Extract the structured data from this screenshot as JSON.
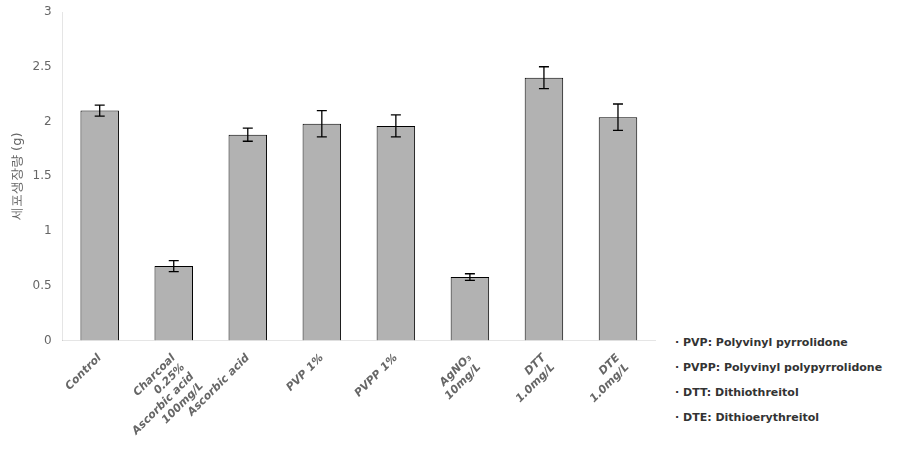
{
  "chart_data": {
    "type": "bar",
    "categories": [
      "Control",
      "Charcoal\n0.25%\nAscorbic acid\n100mg/L",
      "Ascorbic acid",
      "PVP 1%",
      "PVPP 1%",
      "AgNO₃\n10mg/L",
      "DTT\n1.0mg/L",
      "DTE\n1.0mg/L"
    ],
    "values": [
      2.1,
      0.68,
      1.88,
      1.98,
      1.96,
      0.58,
      2.4,
      2.04
    ],
    "errors": [
      0.05,
      0.05,
      0.06,
      0.12,
      0.1,
      0.03,
      0.1,
      0.12
    ],
    "color": "#b2b2b2",
    "ylabel": "세포생장량 (g)",
    "ylim": [
      0,
      3.0
    ],
    "yticks": [
      0,
      0.5,
      1.0,
      1.5,
      2.0,
      2.5,
      3.0
    ],
    "grid": false,
    "annotations": [
      "· PVP: Polyvinyl pyrrolidone",
      "· PVPP: Polyvinyl polypyrrolidone",
      "· DTT: Dithiothreitol",
      "· DTE: Dithioerythreitol"
    ]
  }
}
